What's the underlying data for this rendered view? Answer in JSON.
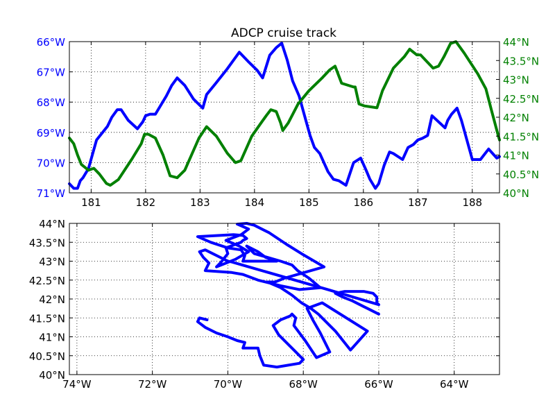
{
  "chart_data": [
    {
      "type": "line",
      "title": "ADCP cruise track",
      "xlabel": "",
      "xlim": [
        180.6,
        188.5
      ],
      "x_ticks": [
        181,
        182,
        183,
        184,
        185,
        186,
        187,
        188
      ],
      "grid": true,
      "y_left": {
        "color": "#0000ff",
        "inverted": true,
        "ylim": [
          66,
          71
        ],
        "ticks": [
          66,
          67,
          68,
          69,
          70,
          71
        ],
        "tick_labels": [
          "66°W",
          "67°W",
          "68°W",
          "69°W",
          "70°W",
          "71°W"
        ]
      },
      "y_right": {
        "color": "#008000",
        "ylim": [
          40,
          44
        ],
        "ticks": [
          40,
          40.5,
          41,
          41.5,
          42,
          42.5,
          43,
          43.5,
          44
        ],
        "tick_labels": [
          "40°N",
          "40.5°N",
          "41°N",
          "41.5°N",
          "42°N",
          "42.5°N",
          "43°N",
          "43.5°N",
          "44°N"
        ]
      },
      "series": [
        {
          "axis": "left",
          "color": "#0000ff",
          "x": [
            180.6,
            180.68,
            180.75,
            180.8,
            180.85,
            180.95,
            181.1,
            181.3,
            181.38,
            181.48,
            181.55,
            181.68,
            181.85,
            181.95,
            182.0,
            182.08,
            182.18,
            182.38,
            182.48,
            182.58,
            182.72,
            182.88,
            183.05,
            183.12,
            183.28,
            183.5,
            183.72,
            183.88,
            184.05,
            184.15,
            184.28,
            184.4,
            184.5,
            184.6,
            184.7,
            184.82,
            184.92,
            185.02,
            185.1,
            185.2,
            185.35,
            185.45,
            185.55,
            185.68,
            185.82,
            185.95,
            186.05,
            186.12,
            186.22,
            186.28,
            186.38,
            186.48,
            186.55,
            186.72,
            186.82,
            186.92,
            187.0,
            187.08,
            187.18,
            187.26,
            187.5,
            187.55,
            187.62,
            187.72,
            187.8,
            188.0,
            188.15,
            188.3,
            188.45,
            188.5
          ],
          "y": [
            70.7,
            70.85,
            70.85,
            70.6,
            70.5,
            70.2,
            69.25,
            68.8,
            68.5,
            68.25,
            68.25,
            68.6,
            68.88,
            68.65,
            68.45,
            68.4,
            68.4,
            67.8,
            67.45,
            67.2,
            67.45,
            67.9,
            68.2,
            67.75,
            67.4,
            66.9,
            66.35,
            66.65,
            66.95,
            67.2,
            66.45,
            66.2,
            66.05,
            66.6,
            67.3,
            67.8,
            68.45,
            69.1,
            69.5,
            69.7,
            70.3,
            70.55,
            70.6,
            70.75,
            70.0,
            69.85,
            70.25,
            70.55,
            70.85,
            70.7,
            70.1,
            69.65,
            69.7,
            69.9,
            69.5,
            69.4,
            69.25,
            69.2,
            69.1,
            68.45,
            68.85,
            68.6,
            68.4,
            68.2,
            68.6,
            69.9,
            69.9,
            69.55,
            69.85,
            69.8
          ]
        },
        {
          "axis": "right",
          "color": "#008000",
          "x": [
            180.6,
            180.68,
            180.75,
            180.82,
            180.95,
            181.05,
            181.15,
            181.28,
            181.35,
            181.5,
            181.75,
            181.92,
            181.98,
            182.05,
            182.18,
            182.32,
            182.45,
            182.58,
            182.72,
            182.98,
            183.12,
            183.3,
            183.5,
            183.65,
            183.75,
            183.95,
            184.12,
            184.22,
            184.3,
            184.4,
            184.48,
            184.52,
            184.62,
            184.8,
            185.0,
            185.25,
            185.38,
            185.48,
            185.6,
            185.82,
            185.85,
            185.92,
            186.02,
            186.25,
            186.35,
            186.55,
            186.75,
            186.85,
            186.98,
            187.05,
            187.28,
            187.38,
            187.48,
            187.6,
            187.7,
            187.85,
            188.1,
            188.25,
            188.35,
            188.48,
            188.5
          ],
          "y": [
            41.45,
            41.3,
            41.0,
            40.75,
            40.6,
            40.65,
            40.5,
            40.25,
            40.2,
            40.35,
            40.9,
            41.3,
            41.55,
            41.55,
            41.45,
            41.0,
            40.45,
            40.4,
            40.6,
            41.45,
            41.75,
            41.5,
            41.05,
            40.8,
            40.85,
            41.5,
            41.85,
            42.05,
            42.2,
            42.15,
            41.85,
            41.65,
            41.85,
            42.35,
            42.7,
            43.05,
            43.25,
            43.35,
            42.9,
            42.8,
            42.8,
            42.35,
            42.3,
            42.25,
            42.7,
            43.3,
            43.6,
            43.8,
            43.65,
            43.65,
            43.3,
            43.35,
            43.6,
            43.95,
            44.0,
            43.7,
            43.15,
            42.75,
            42.2,
            41.5,
            41.4
          ]
        }
      ]
    },
    {
      "type": "line",
      "title": "",
      "xlim": [
        -74.2,
        -62.8
      ],
      "ylim": [
        40,
        44
      ],
      "x_ticks": [
        -74,
        -72,
        -70,
        -68,
        -66,
        -64
      ],
      "x_tick_labels": [
        "74°W",
        "72°W",
        "70°W",
        "68°W",
        "66°W",
        "64°W"
      ],
      "y_ticks": [
        40,
        40.5,
        41,
        41.5,
        42,
        42.5,
        43,
        43.5,
        44
      ],
      "y_tick_labels": [
        "40°N",
        "40.5°N",
        "41°N",
        "41.5°N",
        "42°N",
        "42.5°N",
        "43°N",
        "43.5°N",
        "44°N"
      ],
      "grid": true,
      "series": [
        {
          "color": "#0000ff",
          "x": [
            -66.0,
            -66.1,
            -66.2,
            -66.3,
            -66.4,
            -66.5,
            -66.7,
            -66.95,
            -67.15,
            -66.9,
            -66.4,
            -66.15,
            -66.05,
            -66.05,
            -66.0,
            -67.35,
            -69.9,
            -70.0,
            -70.1,
            -70.2,
            -70.6,
            -70.75,
            -70.65,
            -70.5,
            -70.6,
            -69.9,
            -69.6,
            -69.2,
            -68.6,
            -68.1,
            -67.55,
            -67.85,
            -68.15,
            -68.3,
            -68.6,
            -69.3,
            -69.5,
            -69.2,
            -69.0,
            -68.7,
            -69.6,
            -69.55,
            -69.65,
            -70.0,
            -70.45,
            -70.8,
            -69.85,
            -69.6,
            -69.5,
            -69.6,
            -69.65,
            -70.05,
            -70.0,
            -70.2,
            -70.3,
            -69.8,
            -69.45,
            -69.7,
            -70.05,
            -69.65,
            -69.45,
            -69.75,
            -69.5,
            -69.3,
            -69.1,
            -68.9,
            -68.45,
            -68.05,
            -67.45,
            -68.5,
            -68.75,
            -68.95,
            -68.6,
            -68.3,
            -68.05,
            -67.8,
            -67.6,
            -67.35,
            -67.15,
            -66.75,
            -66.3,
            -67.5,
            -67.9,
            -67.75,
            -67.55,
            -67.3,
            -67.65,
            -67.95,
            -68.25,
            -68.2,
            -68.3,
            -68.35,
            -68.6,
            -68.8,
            -68.65,
            -68.25,
            -68.0,
            -68.1,
            -68.7,
            -69.05,
            -69.15,
            -69.2,
            -69.6,
            -69.55,
            -69.75,
            -70.0,
            -70.3,
            -70.6,
            -70.8,
            -70.75,
            -70.55
          ],
          "y": [
            41.6,
            41.65,
            41.7,
            41.75,
            41.8,
            41.85,
            41.95,
            42.05,
            42.15,
            42.2,
            42.2,
            42.15,
            42.05,
            41.9,
            41.85,
            42.25,
            42.98,
            43.0,
            43.05,
            43.1,
            43.3,
            43.25,
            43.1,
            42.95,
            42.75,
            42.7,
            42.65,
            42.5,
            42.35,
            42.25,
            42.3,
            42.55,
            42.75,
            42.9,
            43.0,
            43.2,
            43.4,
            43.25,
            43.1,
            43.0,
            43.0,
            43.15,
            43.3,
            43.35,
            43.5,
            43.65,
            43.7,
            43.68,
            43.6,
            43.55,
            43.5,
            43.35,
            43.2,
            42.95,
            42.85,
            43.05,
            43.25,
            43.4,
            43.55,
            43.7,
            43.85,
            43.98,
            44.0,
            43.95,
            43.85,
            43.75,
            43.45,
            43.2,
            42.85,
            42.55,
            42.45,
            42.45,
            42.3,
            42.1,
            41.9,
            41.75,
            41.6,
            41.35,
            41.15,
            40.65,
            41.15,
            41.9,
            41.75,
            41.45,
            41.1,
            40.6,
            40.45,
            40.9,
            41.3,
            41.5,
            41.6,
            41.55,
            41.45,
            41.3,
            41.05,
            40.65,
            40.4,
            40.3,
            40.2,
            40.25,
            40.5,
            40.7,
            40.7,
            40.85,
            40.9,
            41.0,
            41.1,
            41.25,
            41.4,
            41.5,
            41.45
          ]
        }
      ]
    }
  ]
}
